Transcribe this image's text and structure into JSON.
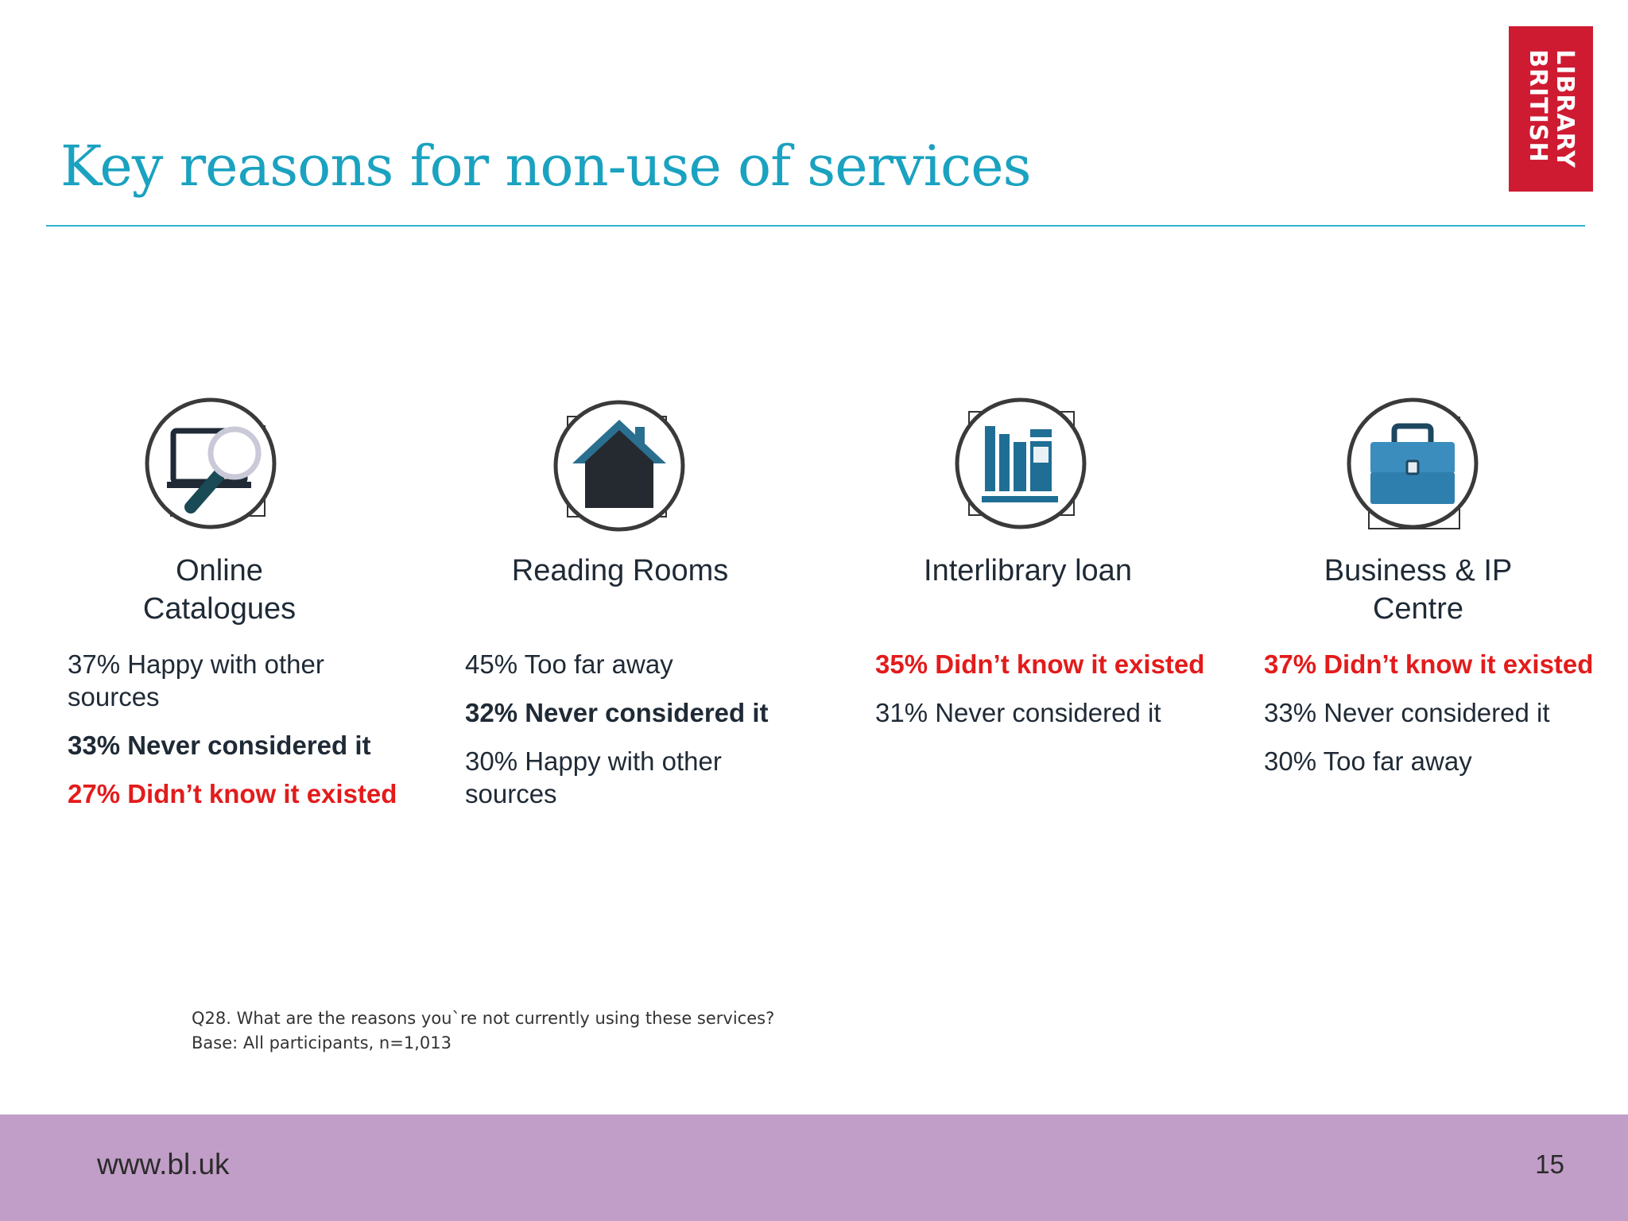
{
  "slide": {
    "title": "Key reasons for non-use of services",
    "logo": {
      "line1": "LIBRARY",
      "line2": "BRITISH"
    },
    "columns": [
      {
        "title": "Online\nCatalogues",
        "icon": "magnifier-laptop-icon",
        "stats": [
          {
            "text": "37% Happy with other sources",
            "style": "normal"
          },
          {
            "text": "33% Never considered it",
            "style": "bold"
          },
          {
            "text": "27% Didn’t know it existed",
            "style": "red"
          }
        ]
      },
      {
        "title": "Reading Rooms",
        "icon": "house-icon",
        "stats": [
          {
            "text": "45% Too far away",
            "style": "normal"
          },
          {
            "text": "32% Never considered it",
            "style": "bold"
          },
          {
            "text": "30% Happy with other sources",
            "style": "normal"
          }
        ]
      },
      {
        "title": "Interlibrary loan",
        "icon": "books-icon",
        "stats": [
          {
            "text": "35% Didn’t know it existed",
            "style": "red"
          },
          {
            "text": "31% Never considered it",
            "style": "normal"
          }
        ]
      },
      {
        "title": "Business & IP\nCentre",
        "icon": "briefcase-icon",
        "stats": [
          {
            "text": "37% Didn’t know it existed",
            "style": "red"
          },
          {
            "text": "33% Never considered it",
            "style": "normal"
          },
          {
            "text": "30% Too far away",
            "style": "normal"
          }
        ]
      }
    ],
    "footnote": {
      "question": "Q28. What are the reasons you`re not currently using these services?",
      "base": "Base: All participants, n=1,013"
    },
    "footer": {
      "url": "www.bl.uk",
      "page": "15"
    },
    "colors": {
      "title": "#1aa2c0",
      "accent_red": "#e31b1b",
      "footer": "#c19ec8",
      "logo": "#cf1b32"
    }
  }
}
